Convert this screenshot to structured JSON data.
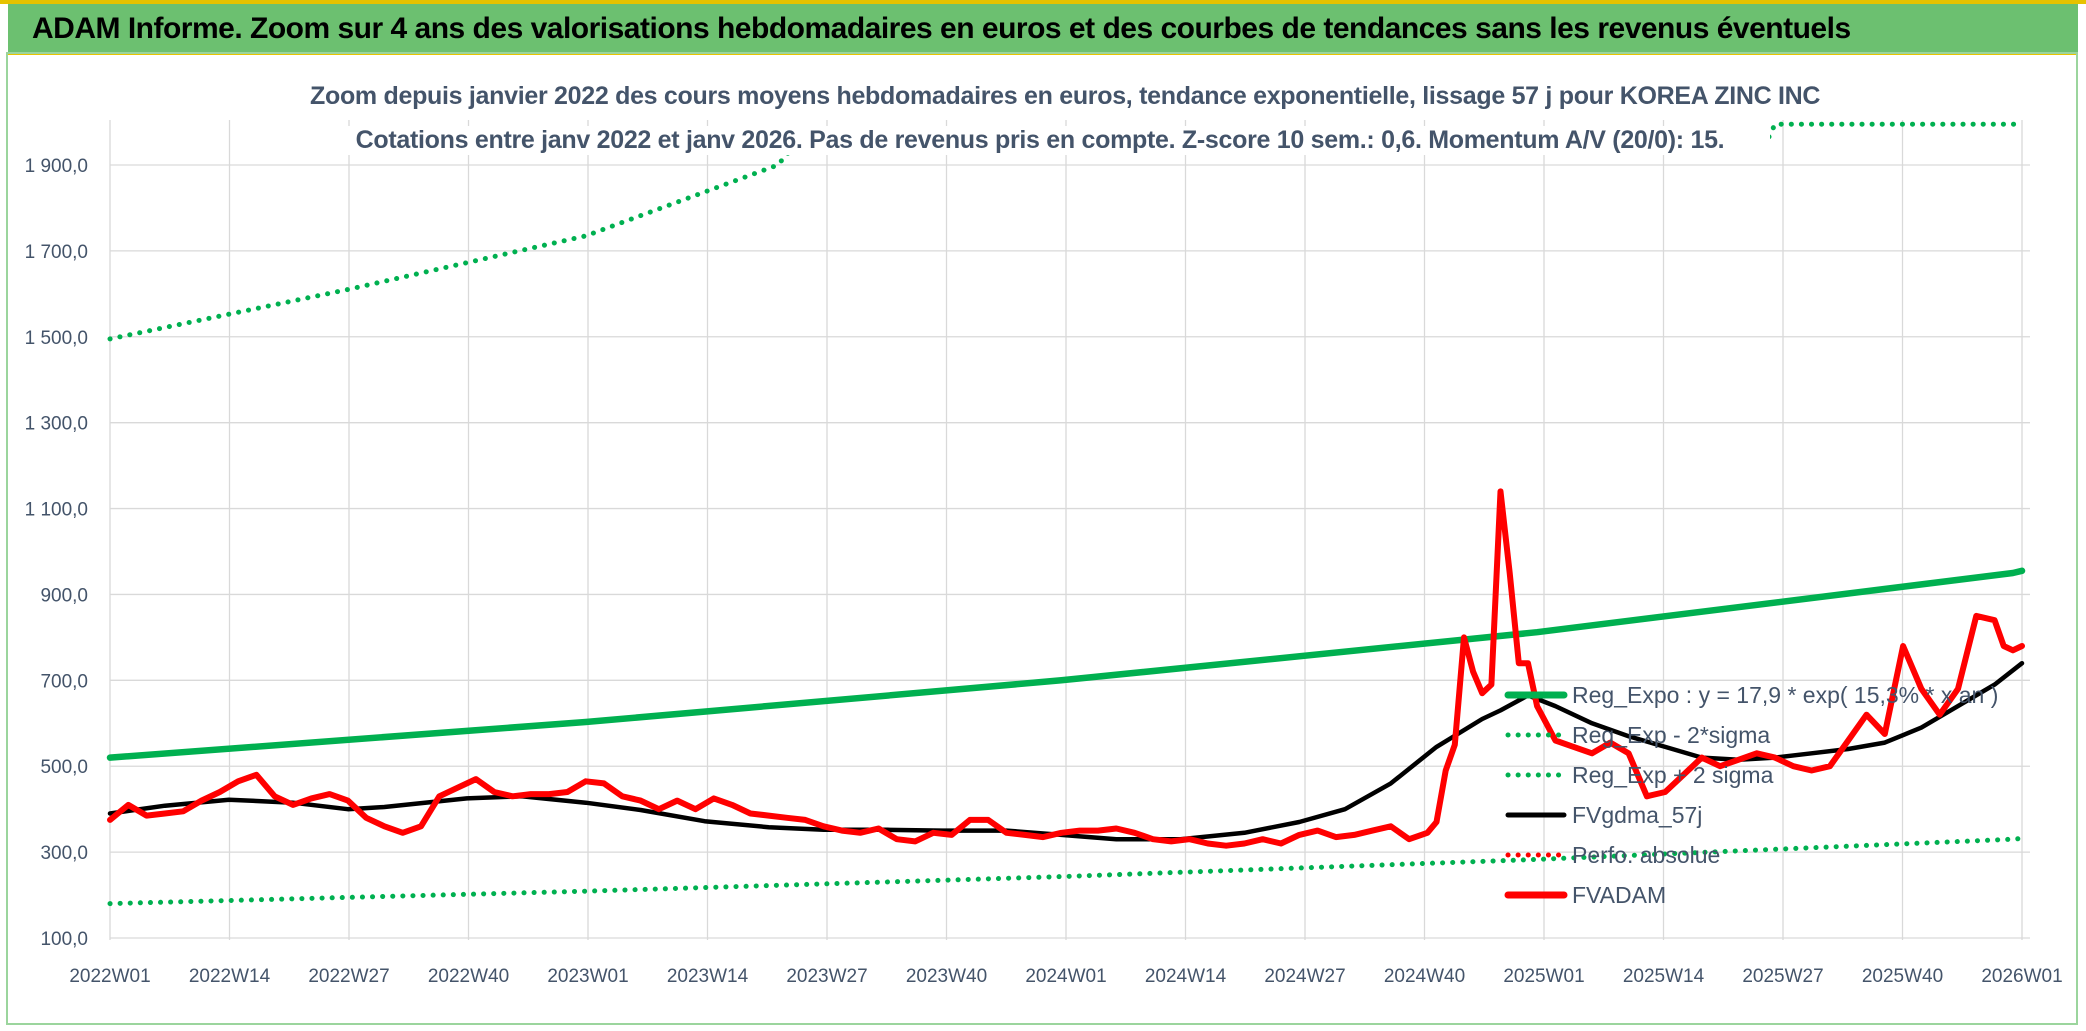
{
  "header": {
    "title": "ADAM Informe. Zoom sur 4 ans des valorisations hebdomadaires en euros et des courbes de tendances sans les revenus éventuels"
  },
  "chart_data": {
    "type": "line",
    "title": "Zoom depuis janvier 2022 des cours moyens hebdomadaires en euros, tendance exponentielle, lissage 57 j pour KOREA ZINC INC",
    "subtitle": "Cotations entre janv 2022 et janv 2026. Pas de revenus pris en compte. Z-score 10 sem.: 0,6. Momentum A/V (20/0): 15.",
    "ylim": [
      100,
      1950
    ],
    "yticks": [
      "100,0",
      "300,0",
      "500,0",
      "700,0",
      "900,0",
      "1 100,0",
      "1 300,0",
      "1 500,0",
      "1 700,0",
      "1 900,0"
    ],
    "xticks": [
      "2022W01",
      "2022W14",
      "2022W27",
      "2022W40",
      "2023W01",
      "2023W14",
      "2023W27",
      "2023W40",
      "2024W01",
      "2024W14",
      "2024W27",
      "2024W40",
      "2025W01",
      "2025W14",
      "2025W27",
      "2025W40",
      "2026W01"
    ],
    "grid": true,
    "legend_position": "right",
    "series": [
      {
        "name": "Reg_Expo : y = 17,9 * exp( 15,3% * x an )",
        "color": "#00b050",
        "style": "solid",
        "x": [
          0,
          52,
          104,
          156,
          208,
          209
        ],
        "y": [
          520,
          603,
          700,
          812,
          950,
          955
        ]
      },
      {
        "name": "Reg_Exp - 2*sigma",
        "color": "#00b050",
        "style": "dotted",
        "x": [
          0,
          52,
          104,
          156,
          208,
          209
        ],
        "y": [
          180,
          209,
          243,
          283,
          330,
          332
        ]
      },
      {
        "name": "Reg_Exp + 2 sigma",
        "color": "#00b050",
        "style": "dotted",
        "x": [
          0,
          26,
          52,
          73,
          75,
          181,
          182,
          209
        ],
        "y": [
          1495,
          1610,
          1735,
          1900,
          1950,
          1950,
          1995,
          1995
        ]
      },
      {
        "name": "FVgdma_57j",
        "color": "#000000",
        "style": "solid",
        "x": [
          0,
          6,
          13,
          20,
          26,
          30,
          39,
          45,
          52,
          58,
          65,
          72,
          78,
          85,
          91,
          98,
          104,
          110,
          117,
          124,
          130,
          135,
          140,
          145,
          150,
          152,
          155,
          158,
          162,
          166,
          170,
          174,
          178,
          182,
          186,
          190,
          194,
          198,
          202,
          206,
          209
        ],
        "y": [
          390,
          408,
          422,
          415,
          400,
          405,
          425,
          430,
          415,
          398,
          372,
          358,
          352,
          352,
          350,
          350,
          340,
          330,
          330,
          345,
          370,
          400,
          460,
          545,
          610,
          630,
          665,
          640,
          600,
          570,
          545,
          520,
          515,
          520,
          530,
          540,
          555,
          590,
          640,
          690,
          740
        ]
      },
      {
        "name": "Perfo. absolue",
        "color": "#ff0000",
        "style": "dotted",
        "x": [],
        "y": []
      },
      {
        "name": "FVADAM",
        "color": "#ff0000",
        "style": "solid",
        "x": [
          0,
          2,
          4,
          6,
          8,
          10,
          12,
          14,
          16,
          18,
          20,
          22,
          24,
          26,
          28,
          30,
          32,
          34,
          36,
          38,
          40,
          42,
          44,
          46,
          48,
          50,
          52,
          54,
          56,
          58,
          60,
          62,
          64,
          66,
          68,
          70,
          72,
          74,
          76,
          78,
          80,
          82,
          84,
          86,
          88,
          90,
          92,
          94,
          96,
          98,
          100,
          102,
          104,
          106,
          108,
          110,
          112,
          114,
          116,
          118,
          120,
          122,
          124,
          126,
          128,
          130,
          132,
          134,
          136,
          138,
          140,
          142,
          144,
          145,
          146,
          147,
          148,
          149,
          150,
          151,
          152,
          153,
          154,
          155,
          156,
          158,
          160,
          162,
          164,
          166,
          168,
          170,
          172,
          174,
          176,
          178,
          180,
          182,
          184,
          186,
          188,
          190,
          192,
          194,
          196,
          198,
          200,
          202,
          204,
          206,
          207,
          208,
          209
        ],
        "y": [
          375,
          410,
          385,
          390,
          395,
          420,
          440,
          465,
          480,
          430,
          410,
          425,
          435,
          420,
          380,
          360,
          345,
          360,
          430,
          450,
          470,
          440,
          430,
          435,
          435,
          440,
          465,
          460,
          430,
          420,
          400,
          420,
          400,
          425,
          410,
          390,
          385,
          380,
          375,
          360,
          350,
          345,
          355,
          330,
          325,
          345,
          340,
          375,
          375,
          345,
          340,
          335,
          345,
          350,
          350,
          355,
          345,
          330,
          325,
          330,
          320,
          315,
          320,
          330,
          320,
          340,
          350,
          335,
          340,
          350,
          360,
          330,
          345,
          370,
          490,
          550,
          800,
          720,
          670,
          690,
          1140,
          950,
          740,
          740,
          640,
          560,
          545,
          530,
          555,
          530,
          430,
          440,
          480,
          520,
          500,
          515,
          530,
          520,
          500,
          490,
          500,
          560,
          620,
          575,
          780,
          680,
          620,
          680,
          850,
          840,
          780,
          770,
          780
        ]
      }
    ]
  }
}
